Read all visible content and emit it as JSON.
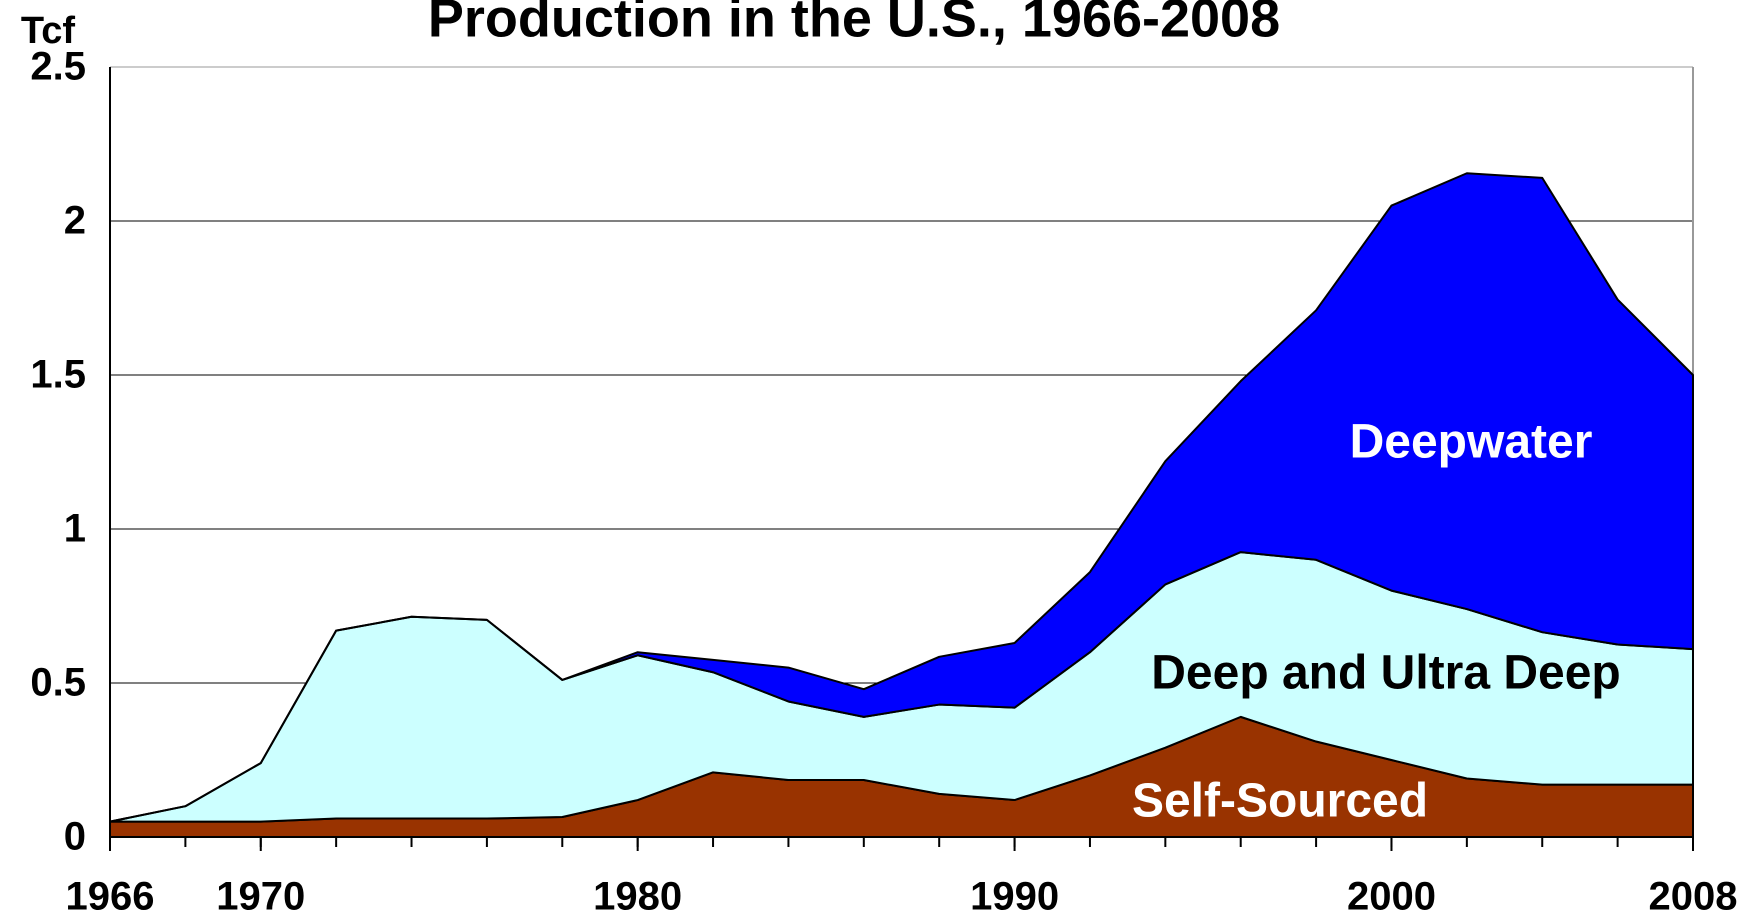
{
  "chart_data": {
    "type": "stacked-area",
    "title": "Production in the U.S., 1966-2008",
    "ylabel": "Tcf",
    "x": [
      1966,
      1968,
      1970,
      1972,
      1974,
      1976,
      1978,
      1980,
      1982,
      1984,
      1986,
      1988,
      1990,
      1992,
      1994,
      1996,
      1998,
      2000,
      2002,
      2004,
      2006,
      2008
    ],
    "series": [
      {
        "name": "Self-Sourced",
        "color": "#993300",
        "values": [
          0.05,
          0.05,
          0.05,
          0.06,
          0.06,
          0.06,
          0.065,
          0.12,
          0.21,
          0.185,
          0.185,
          0.14,
          0.12,
          0.2,
          0.29,
          0.39,
          0.31,
          0.25,
          0.19,
          0.17,
          0.17,
          0.17
        ]
      },
      {
        "name": "Deep and Ultra Deep",
        "color": "#ccffff",
        "values": [
          0,
          0.05,
          0.19,
          0.61,
          0.655,
          0.645,
          0.445,
          0.47,
          0.325,
          0.255,
          0.205,
          0.29,
          0.3,
          0.4,
          0.53,
          0.535,
          0.59,
          0.55,
          0.55,
          0.495,
          0.455,
          0.44
        ]
      },
      {
        "name": "Deepwater",
        "color": "#0000ff",
        "values": [
          0,
          0,
          0,
          0,
          0,
          0,
          0,
          0.01,
          0.04,
          0.11,
          0.09,
          0.155,
          0.21,
          0.26,
          0.4,
          0.555,
          0.81,
          1.25,
          1.415,
          1.475,
          1.12,
          0.89
        ]
      }
    ],
    "xlim": [
      1966,
      2008
    ],
    "xticks": [
      1966,
      1970,
      1980,
      1990,
      2000,
      2008
    ],
    "ylim": [
      0,
      2.5
    ],
    "yticks": [
      0,
      0.5,
      1,
      1.5,
      2,
      2.5
    ],
    "grid": true
  }
}
